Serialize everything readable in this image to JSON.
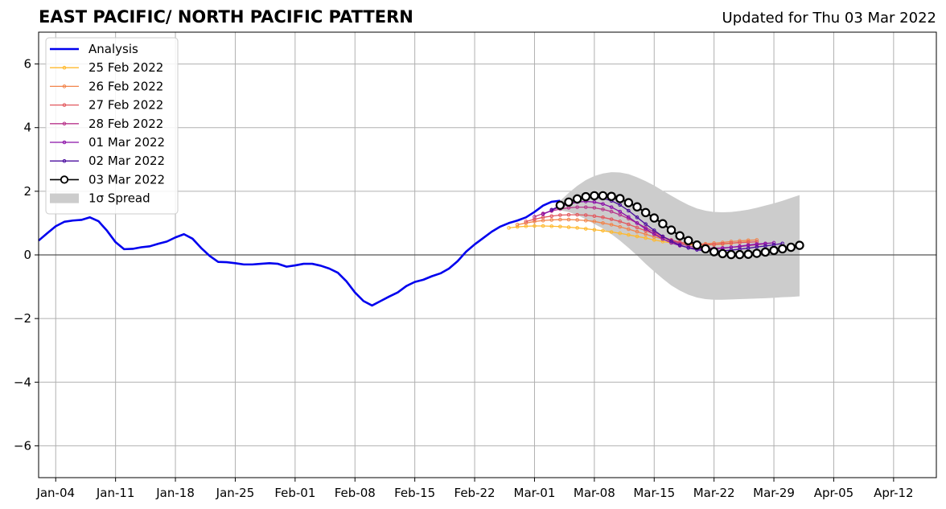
{
  "chart_data": {
    "type": "line",
    "title": "EAST PACIFIC/ NORTH PACIFIC PATTERN",
    "subtitle": "Updated for Thu 03 Mar 2022",
    "xlabel": "",
    "ylabel": "",
    "x_range": [
      "2022-01-02",
      "2022-04-17"
    ],
    "ylim": [
      -7,
      7
    ],
    "y_ticks": [
      -6,
      -4,
      -2,
      0,
      2,
      4,
      6
    ],
    "y_tick_labels": [
      "−6",
      "−4",
      "−2",
      "0",
      "2",
      "4",
      "6"
    ],
    "x_ticks": [
      "2022-01-04",
      "2022-01-11",
      "2022-01-18",
      "2022-01-25",
      "2022-02-01",
      "2022-02-08",
      "2022-02-15",
      "2022-02-22",
      "2022-03-01",
      "2022-03-08",
      "2022-03-15",
      "2022-03-22",
      "2022-03-29",
      "2022-04-05",
      "2022-04-12"
    ],
    "x_tick_labels": [
      "Jan-04",
      "Jan-11",
      "Jan-18",
      "Jan-25",
      "Feb-01",
      "Feb-08",
      "Feb-15",
      "Feb-22",
      "Mar-01",
      "Mar-08",
      "Mar-15",
      "Mar-22",
      "Mar-29",
      "Apr-05",
      "Apr-12"
    ],
    "grid": true,
    "legend_position": "upper-left",
    "series": [
      {
        "name": "Analysis",
        "color": "#0000ee",
        "marker": "none",
        "x": [
          "2022-01-02",
          "2022-01-03",
          "2022-01-04",
          "2022-01-05",
          "2022-01-06",
          "2022-01-07",
          "2022-01-08",
          "2022-01-09",
          "2022-01-10",
          "2022-01-11",
          "2022-01-12",
          "2022-01-13",
          "2022-01-14",
          "2022-01-15",
          "2022-01-16",
          "2022-01-17",
          "2022-01-18",
          "2022-01-19",
          "2022-01-20",
          "2022-01-21",
          "2022-01-22",
          "2022-01-23",
          "2022-01-24",
          "2022-01-25",
          "2022-01-26",
          "2022-01-27",
          "2022-01-28",
          "2022-01-29",
          "2022-01-30",
          "2022-01-31",
          "2022-02-01",
          "2022-02-02",
          "2022-02-03",
          "2022-02-04",
          "2022-02-05",
          "2022-02-06",
          "2022-02-07",
          "2022-02-08",
          "2022-02-09",
          "2022-02-10",
          "2022-02-11",
          "2022-02-12",
          "2022-02-13",
          "2022-02-14",
          "2022-02-15",
          "2022-02-16",
          "2022-02-17",
          "2022-02-18",
          "2022-02-19",
          "2022-02-20",
          "2022-02-21",
          "2022-02-22",
          "2022-02-23",
          "2022-02-24",
          "2022-02-25",
          "2022-02-26",
          "2022-02-27",
          "2022-02-28",
          "2022-03-01",
          "2022-03-02",
          "2022-03-03",
          "2022-03-04"
        ],
        "values": [
          0.45,
          0.68,
          0.9,
          1.04,
          1.08,
          1.1,
          1.18,
          1.06,
          0.76,
          0.4,
          0.18,
          0.19,
          0.24,
          0.27,
          0.35,
          0.42,
          0.55,
          0.65,
          0.51,
          0.22,
          -0.03,
          -0.22,
          -0.23,
          -0.26,
          -0.3,
          -0.3,
          -0.28,
          -0.26,
          -0.28,
          -0.37,
          -0.33,
          -0.28,
          -0.28,
          -0.34,
          -0.43,
          -0.56,
          -0.83,
          -1.18,
          -1.45,
          -1.59,
          -1.45,
          -1.31,
          -1.18,
          -0.98,
          -0.85,
          -0.78,
          -0.67,
          -0.58,
          -0.43,
          -0.2,
          0.1,
          0.33,
          0.53,
          0.73,
          0.89,
          1.0,
          1.08,
          1.18,
          1.35,
          1.55,
          1.67,
          1.7
        ]
      },
      {
        "name": "25 Feb 2022",
        "color": "#ffb92c",
        "marker": "o-small",
        "x_start": "2022-02-26",
        "values": [
          0.85,
          0.88,
          0.9,
          0.91,
          0.91,
          0.9,
          0.89,
          0.87,
          0.85,
          0.82,
          0.79,
          0.76,
          0.72,
          0.68,
          0.63,
          0.58,
          0.53,
          0.47,
          0.42,
          0.38,
          0.34,
          0.32,
          0.31,
          0.31,
          0.32,
          0.34,
          0.36,
          0.39,
          0.42
        ]
      },
      {
        "name": "26 Feb 2022",
        "color": "#f2844b",
        "marker": "o-small",
        "x_start": "2022-02-27",
        "values": [
          0.95,
          1.0,
          1.05,
          1.08,
          1.1,
          1.11,
          1.11,
          1.1,
          1.08,
          1.05,
          1.0,
          0.95,
          0.88,
          0.81,
          0.73,
          0.65,
          0.57,
          0.5,
          0.43,
          0.38,
          0.35,
          0.34,
          0.35,
          0.37,
          0.39,
          0.42,
          0.44,
          0.46,
          0.47
        ]
      },
      {
        "name": "27 Feb 2022",
        "color": "#e2575d",
        "marker": "o-small",
        "x_start": "2022-02-28",
        "values": [
          1.05,
          1.12,
          1.18,
          1.22,
          1.25,
          1.26,
          1.26,
          1.25,
          1.22,
          1.18,
          1.12,
          1.05,
          0.96,
          0.86,
          0.76,
          0.66,
          0.56,
          0.47,
          0.4,
          0.35,
          0.32,
          0.32,
          0.33,
          0.35,
          0.37,
          0.39,
          0.4,
          0.41
        ]
      },
      {
        "name": "28 Feb 2022",
        "color": "#b8358b",
        "marker": "o-small",
        "x_start": "2022-03-01",
        "values": [
          1.2,
          1.3,
          1.38,
          1.44,
          1.48,
          1.5,
          1.5,
          1.48,
          1.43,
          1.36,
          1.26,
          1.14,
          1.0,
          0.86,
          0.72,
          0.58,
          0.46,
          0.36,
          0.28,
          0.23,
          0.21,
          0.21,
          0.22,
          0.24,
          0.26,
          0.29,
          0.32,
          0.35
        ]
      },
      {
        "name": "01 Mar 2022",
        "color": "#8b10a8",
        "marker": "o-small",
        "x_start": "2022-03-02",
        "values": [
          1.28,
          1.4,
          1.52,
          1.6,
          1.66,
          1.68,
          1.66,
          1.6,
          1.5,
          1.36,
          1.19,
          1.0,
          0.82,
          0.65,
          0.5,
          0.38,
          0.29,
          0.23,
          0.19,
          0.18,
          0.19,
          0.21,
          0.24,
          0.27,
          0.31,
          0.34,
          0.36,
          0.38
        ]
      },
      {
        "name": "02 Mar 2022",
        "color": "#4a0c9e",
        "marker": "o-small",
        "x_start": "2022-03-03",
        "values": [
          1.42,
          1.55,
          1.67,
          1.75,
          1.8,
          1.82,
          1.78,
          1.7,
          1.57,
          1.39,
          1.18,
          0.97,
          0.77,
          0.58,
          0.43,
          0.31,
          0.22,
          0.16,
          0.13,
          0.12,
          0.13,
          0.15,
          0.18,
          0.21,
          0.25,
          0.28,
          0.32,
          0.36
        ]
      },
      {
        "name": "03 Mar 2022",
        "color": "#000000",
        "marker": "o-large",
        "x_start": "2022-03-04",
        "values": [
          1.56,
          1.66,
          1.76,
          1.83,
          1.86,
          1.86,
          1.84,
          1.77,
          1.64,
          1.51,
          1.33,
          1.16,
          0.98,
          0.78,
          0.6,
          0.45,
          0.31,
          0.19,
          0.1,
          0.04,
          0.01,
          0.01,
          0.02,
          0.05,
          0.09,
          0.14,
          0.19,
          0.24,
          0.3
        ]
      }
    ],
    "spread": {
      "name": "1σ Spread",
      "color": "#cccccc",
      "x_start": "2022-03-04",
      "upper": [
        1.7,
        1.95,
        2.17,
        2.35,
        2.48,
        2.56,
        2.6,
        2.59,
        2.54,
        2.44,
        2.32,
        2.18,
        2.02,
        1.86,
        1.71,
        1.57,
        1.46,
        1.39,
        1.35,
        1.34,
        1.35,
        1.38,
        1.42,
        1.48,
        1.55,
        1.62,
        1.7,
        1.79,
        1.88
      ],
      "lower": [
        1.4,
        1.35,
        1.25,
        1.12,
        0.97,
        0.83,
        0.65,
        0.45,
        0.22,
        -0.02,
        -0.28,
        -0.52,
        -0.75,
        -0.96,
        -1.12,
        -1.25,
        -1.34,
        -1.39,
        -1.41,
        -1.41,
        -1.4,
        -1.39,
        -1.38,
        -1.37,
        -1.36,
        -1.35,
        -1.33,
        -1.32,
        -1.3
      ]
    }
  }
}
